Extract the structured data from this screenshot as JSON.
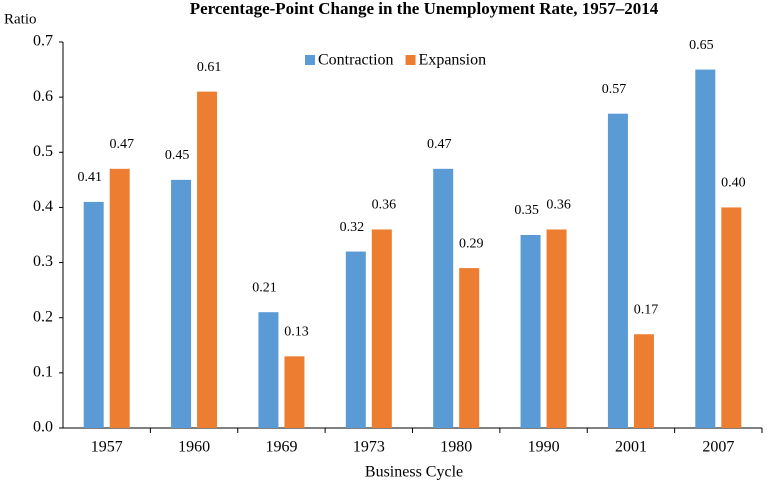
{
  "chart_data": {
    "type": "bar",
    "title": "Percentage-Point Change in the Unemployment Rate, 1957–2014",
    "y_label": "Ratio",
    "x_label": "Business Cycle",
    "categories": [
      "1957",
      "1960",
      "1969",
      "1973",
      "1980",
      "1990",
      "2001",
      "2007"
    ],
    "series": [
      {
        "name": "Contraction",
        "color": "#5b9bd5",
        "values": [
          0.41,
          0.45,
          0.21,
          0.32,
          0.47,
          0.35,
          0.57,
          0.65
        ],
        "value_labels": [
          "0.41",
          "0.45",
          "0.21",
          "0.32",
          "0.47",
          "0.35",
          "0.57",
          "0.65"
        ]
      },
      {
        "name": "Expansion",
        "color": "#ed7d31",
        "values": [
          0.47,
          0.61,
          0.13,
          0.36,
          0.29,
          0.36,
          0.17,
          0.4
        ],
        "value_labels": [
          "0.47",
          "0.61",
          "0.13",
          "0.36",
          "0.29",
          "0.36",
          "0.17",
          "0.40"
        ]
      }
    ],
    "ylim": [
      0,
      0.7
    ],
    "yticks": [
      {
        "value": 0,
        "label": "0.0"
      },
      0.1,
      0.2,
      0.3,
      0.4,
      0.5,
      0.6,
      0.7
    ],
    "legend": "top"
  }
}
